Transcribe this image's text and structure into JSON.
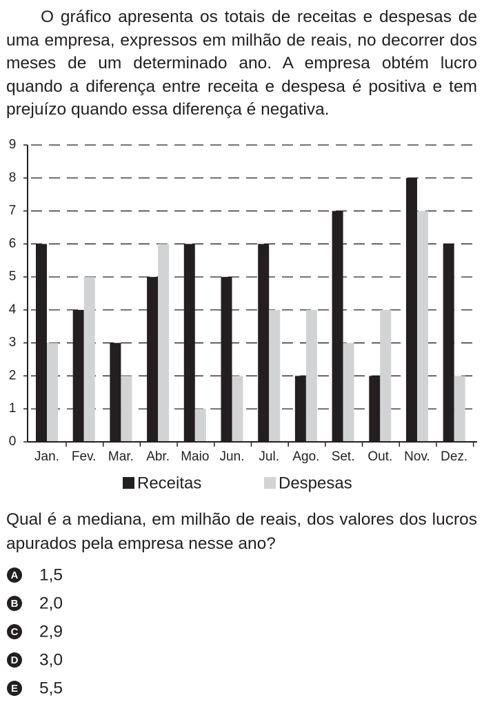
{
  "intro": "O gráfico apresenta os totais de receitas e despesas de uma empresa, expressos em milhão de reais, no decorrer dos meses de um determinado ano. A empresa obtém lucro quando a diferença entre receita e despesa é positiva e tem prejuízo quando essa diferença é negativa.",
  "chart_data": {
    "type": "bar",
    "categories": [
      "Jan.",
      "Fev.",
      "Mar.",
      "Abr.",
      "Maio",
      "Jun.",
      "Jul.",
      "Ago.",
      "Set.",
      "Out.",
      "Nov.",
      "Dez."
    ],
    "series": [
      {
        "name": "Receitas",
        "color": "#231f20",
        "values": [
          6,
          4,
          3,
          5,
          6,
          5,
          6,
          2,
          7,
          2,
          8,
          6
        ]
      },
      {
        "name": "Despesas",
        "color": "#d1d3d4",
        "values": [
          3,
          5,
          2,
          6,
          1,
          2,
          4,
          4,
          3,
          4,
          7,
          2
        ]
      }
    ],
    "ylim": [
      0,
      9
    ],
    "yticks": [
      0,
      1,
      2,
      3,
      4,
      5,
      6,
      7,
      8,
      9
    ],
    "grid": true
  },
  "question": "Qual é a mediana, em milhão de reais, dos valores dos lucros apurados pela empresa nesse ano?",
  "options": [
    {
      "letter": "A",
      "text": "1,5"
    },
    {
      "letter": "B",
      "text": "2,0"
    },
    {
      "letter": "C",
      "text": "2,9"
    },
    {
      "letter": "D",
      "text": "3,0"
    },
    {
      "letter": "E",
      "text": "5,5"
    }
  ]
}
